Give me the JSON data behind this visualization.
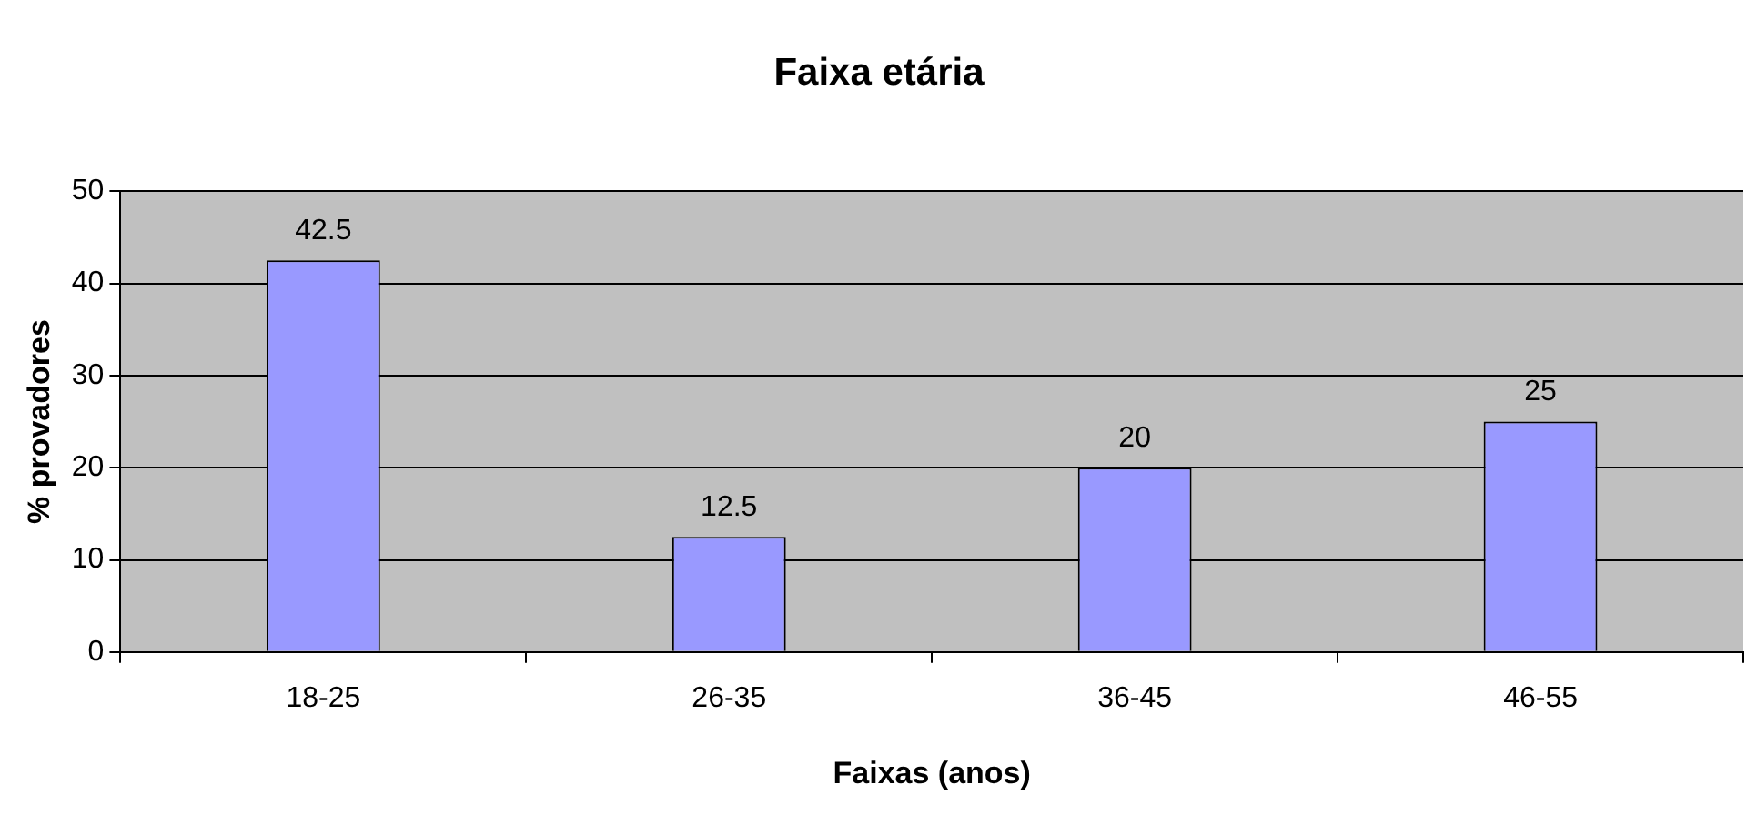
{
  "chart_data": {
    "type": "bar",
    "title": "Faixa etária",
    "xlabel": "Faixas (anos)",
    "ylabel": "% provadores",
    "categories": [
      "18-25",
      "26-35",
      "36-45",
      "46-55"
    ],
    "values": [
      42.5,
      12.5,
      20,
      25
    ],
    "color": "#9999ff",
    "ylim": [
      0,
      50
    ],
    "yticks": [
      0,
      10,
      20,
      30,
      40,
      50
    ],
    "grid": "y",
    "legend": false,
    "data_labels": true
  }
}
